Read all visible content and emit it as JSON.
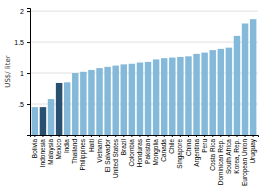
{
  "chart_data": {
    "type": "bar",
    "categories": [
      "Bolivia",
      "Indonesia",
      "Malaysia",
      "Mexico",
      "India",
      "Thailand",
      "Philippines",
      "Haiti",
      "Vietnam",
      "El Salvador",
      "United States",
      "Brazil",
      "Colombia",
      "Honduras",
      "Pakistan",
      "Mongolia",
      "Canada",
      "Chile",
      "Singapore",
      "China",
      "Argentina",
      "Peru",
      "Costa Rica",
      "Dominican Rep.",
      "South Africa",
      "Korea, Rep.",
      "European Union",
      "Uruguay"
    ],
    "values": [
      0.45,
      0.45,
      0.58,
      0.84,
      0.85,
      1.0,
      1.02,
      1.05,
      1.08,
      1.1,
      1.12,
      1.14,
      1.15,
      1.17,
      1.18,
      1.22,
      1.24,
      1.25,
      1.26,
      1.27,
      1.31,
      1.33,
      1.37,
      1.39,
      1.41,
      1.6,
      1.8,
      1.87
    ],
    "colors": [
      "#85b9d9",
      "#2a5070",
      "#85b9d9",
      "#2a5070",
      "#85b9d9",
      "#85b9d9",
      "#85b9d9",
      "#85b9d9",
      "#85b9d9",
      "#85b9d9",
      "#85b9d9",
      "#85b9d9",
      "#85b9d9",
      "#85b9d9",
      "#85b9d9",
      "#85b9d9",
      "#85b9d9",
      "#85b9d9",
      "#85b9d9",
      "#85b9d9",
      "#85b9d9",
      "#85b9d9",
      "#85b9d9",
      "#85b9d9",
      "#85b9d9",
      "#85b9d9",
      "#85b9d9",
      "#85b9d9"
    ],
    "ylabel": "US$/ liter",
    "ylim": [
      0,
      2.05
    ],
    "yticks": [
      {
        "value": 0.5,
        "label": ".5"
      },
      1,
      1.5,
      2
    ],
    "grid": true
  }
}
